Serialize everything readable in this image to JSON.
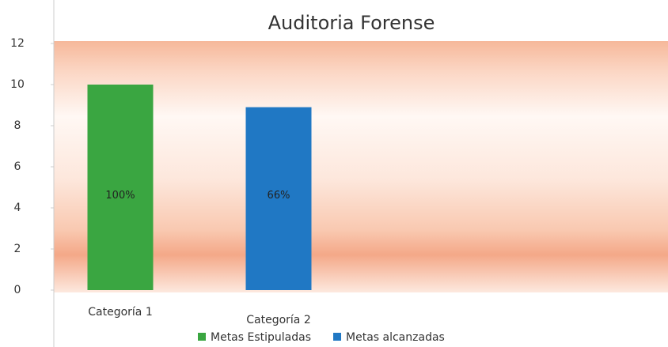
{
  "chart_data": {
    "type": "bar",
    "title": "Auditoria Forense",
    "categories": [
      "Categoría 1",
      "Categoría 2"
    ],
    "series": [
      {
        "name": "Metas Estipuladas",
        "color": "#3aa641",
        "values": [
          10,
          null
        ]
      },
      {
        "name": "Metas alcanzadas",
        "color": "#2078c4",
        "values": [
          null,
          8.9
        ]
      }
    ],
    "annotations": [
      "100%",
      "66%"
    ],
    "ylim": [
      0,
      12
    ],
    "yticks": [
      0,
      2,
      4,
      6,
      8,
      10,
      12
    ],
    "legend": "bottom"
  }
}
